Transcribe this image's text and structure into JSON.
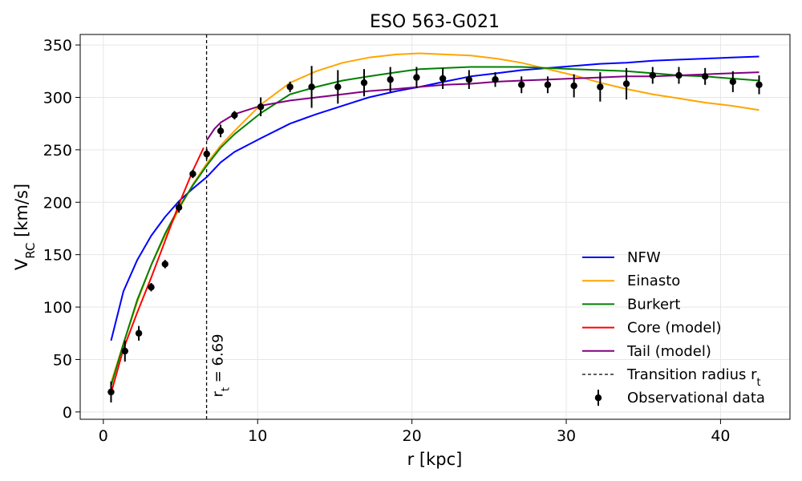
{
  "chart_data": {
    "type": "line",
    "title": "ESO 563-G021",
    "xlabel": "r [kpc]",
    "ylabel": "V_RC [km/s]",
    "xlim": [
      -1.5,
      44.5
    ],
    "ylim": [
      -7,
      360
    ],
    "xticks": [
      0,
      10,
      20,
      30,
      40
    ],
    "yticks": [
      0,
      50,
      100,
      150,
      200,
      250,
      300,
      350
    ],
    "grid": true,
    "legend_position": "bottom-right",
    "transition_radius": 6.69,
    "transition_label": "r_t = 6.69",
    "series": [
      {
        "name": "NFW",
        "color": "#0000ff",
        "x": [
          0.5,
          1.3,
          2.2,
          3.1,
          4.0,
          4.9,
          5.8,
          6.7,
          7.6,
          8.5,
          10.2,
          12.1,
          13.8,
          15.5,
          17.2,
          19.0,
          20.5,
          22.1,
          23.8,
          25.5,
          27.1,
          28.8,
          30.5,
          32.2,
          33.9,
          35.6,
          37.3,
          39.0,
          40.7,
          42.5
        ],
        "y": [
          68,
          115,
          145,
          168,
          186,
          201,
          213,
          224,
          238,
          248,
          261,
          275,
          284,
          292,
          300,
          306,
          310,
          315,
          320,
          323,
          326,
          328,
          330,
          332,
          333,
          335,
          336,
          337,
          338,
          339
        ]
      },
      {
        "name": "Einasto",
        "color": "#ffa500",
        "x": [
          0.5,
          1.3,
          2.2,
          3.1,
          4.0,
          4.9,
          5.8,
          6.7,
          7.6,
          8.5,
          10.2,
          12.1,
          13.8,
          15.5,
          17.2,
          19.0,
          20.5,
          22.1,
          23.8,
          25.5,
          27.1,
          28.8,
          30.5,
          32.2,
          33.9,
          35.6,
          37.3,
          39.0,
          40.7,
          42.5
        ],
        "y": [
          28,
          65,
          105,
          140,
          168,
          193,
          217,
          237,
          254,
          268,
          293,
          314,
          325,
          333,
          338,
          341,
          342,
          341,
          340,
          337,
          333,
          327,
          321,
          314,
          308,
          303,
          299,
          295,
          292,
          288
        ]
      },
      {
        "name": "Burkert",
        "color": "#008000",
        "x": [
          0.5,
          1.3,
          2.2,
          3.1,
          4.0,
          4.9,
          5.8,
          6.7,
          7.6,
          8.5,
          10.2,
          12.1,
          13.8,
          15.5,
          17.2,
          19.0,
          20.5,
          22.1,
          23.8,
          25.5,
          27.1,
          28.8,
          30.5,
          32.2,
          33.9,
          35.6,
          37.3,
          39.0,
          40.7,
          42.5
        ],
        "y": [
          25,
          65,
          107,
          140,
          170,
          195,
          216,
          235,
          252,
          265,
          285,
          303,
          310,
          316,
          320,
          324,
          327,
          328,
          329,
          329,
          329,
          328,
          327,
          326,
          325,
          323,
          321,
          320,
          318,
          316
        ]
      },
      {
        "name": "Core (model)",
        "color": "#ff0000",
        "x": [
          0.5,
          1.3,
          2.2,
          3.1,
          4.0,
          4.9,
          5.8,
          6.5
        ],
        "y": [
          18,
          60,
          95,
          128,
          163,
          198,
          230,
          252
        ]
      },
      {
        "name": "Tail (model)",
        "color": "#800080",
        "x": [
          6.7,
          7.2,
          7.6,
          8.5,
          10.2,
          12.1,
          13.8,
          15.5,
          17.2,
          19.0,
          20.5,
          22.1,
          23.8,
          25.5,
          27.1,
          28.8,
          30.5,
          32.2,
          33.9,
          35.6,
          37.3,
          39.0,
          40.7,
          42.5
        ],
        "y": [
          259,
          270,
          276,
          284,
          292,
          297,
          300,
          303,
          306,
          308,
          310,
          312,
          313,
          315,
          316,
          317,
          318,
          319,
          320,
          320,
          321,
          322,
          323,
          324
        ]
      }
    ],
    "observational_data": {
      "name": "Observational data",
      "color": "#000000",
      "x": [
        0.5,
        1.4,
        2.3,
        3.1,
        4.0,
        4.9,
        5.8,
        6.7,
        7.6,
        8.5,
        10.2,
        12.1,
        13.5,
        15.2,
        16.9,
        18.6,
        20.3,
        22.0,
        23.7,
        25.4,
        27.1,
        28.8,
        30.5,
        32.2,
        33.9,
        35.6,
        37.3,
        39.0,
        40.8,
        42.5
      ],
      "y": [
        19,
        58,
        75,
        119,
        141,
        195,
        227,
        246,
        268,
        283,
        291,
        310,
        310,
        310,
        314,
        317,
        319,
        318,
        317,
        317,
        312,
        312,
        311,
        310,
        313,
        321,
        321,
        320,
        315,
        312
      ],
      "err": [
        10,
        10,
        7,
        4,
        4,
        5,
        4,
        5,
        6,
        4,
        9,
        5,
        20,
        16,
        13,
        12,
        10,
        10,
        9,
        7,
        8,
        8,
        11,
        14,
        15,
        8,
        8,
        8,
        10,
        9
      ]
    },
    "legend": [
      {
        "label": "NFW",
        "kind": "line",
        "color": "#0000ff"
      },
      {
        "label": "Einasto",
        "kind": "line",
        "color": "#ffa500"
      },
      {
        "label": "Burkert",
        "kind": "line",
        "color": "#008000"
      },
      {
        "label": "Core (model)",
        "kind": "line",
        "color": "#ff0000"
      },
      {
        "label": "Tail (model)",
        "kind": "line",
        "color": "#800080"
      },
      {
        "label": "Transition radius r_t",
        "kind": "dashed",
        "color": "#000000"
      },
      {
        "label": "Observational data",
        "kind": "errorbar",
        "color": "#000000"
      }
    ]
  }
}
